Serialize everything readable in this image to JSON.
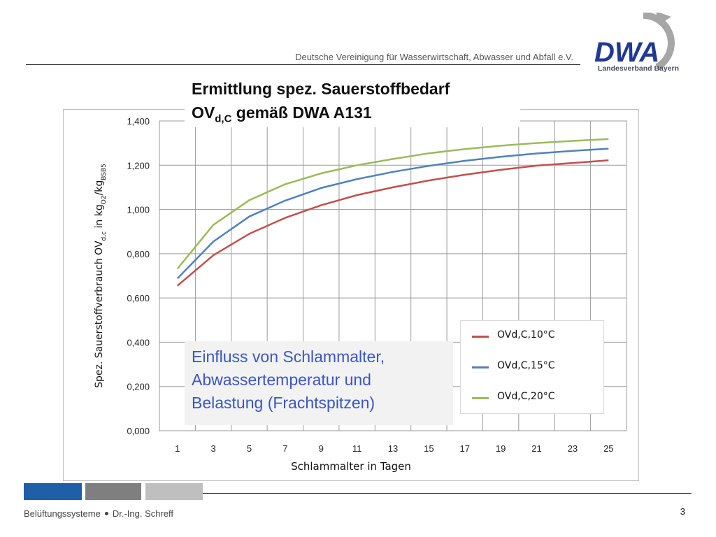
{
  "header": {
    "org": "Deutsche Vereinigung für Wasserwirtschaft, Abwasser und Abfall e.V.",
    "logo_text": "DWA",
    "logo_sub": "Landesverband Bayern",
    "colors": {
      "navy": "#1f3a93",
      "grey": "#a6a6a6"
    }
  },
  "title": {
    "line1": "Ermittlung spez. Sauerstoffbedarf",
    "line2_prefix": "OV",
    "line2_sub": "d,C",
    "line2_suffix": " gemäß DWA A131"
  },
  "note": {
    "line1": "Einfluss von Schlammalter,",
    "line2": "Abwassertemperatur und",
    "line3": "Belastung (Frachtspitzen)"
  },
  "chart_data": {
    "type": "line",
    "x": [
      1,
      3,
      5,
      7,
      9,
      11,
      13,
      15,
      17,
      19,
      21,
      23,
      25
    ],
    "xlabel": "Schlammalter in Tagen",
    "ylabel": "Spez. Sauerstoffverbrauch OV",
    "ylabel_sub1": "d,c",
    "ylabel_mid": " in kg",
    "ylabel_sub2": "O2",
    "ylabel_mid2": "/kg",
    "ylabel_sub3": "BSB5",
    "ylim": [
      0,
      1.4
    ],
    "yticks": [
      0,
      0.2,
      0.4,
      0.6,
      0.8,
      1.0,
      1.2,
      1.4
    ],
    "ytick_labels": [
      "0,000",
      "0,200",
      "0,400",
      "0,600",
      "0,800",
      "1,000",
      "1,200",
      "1,400"
    ],
    "xtick_labels": [
      "1",
      "3",
      "5",
      "7",
      "9",
      "11",
      "13",
      "15",
      "17",
      "19",
      "21",
      "23",
      "25"
    ],
    "grid": true,
    "legend_position": "bottom-right",
    "series": [
      {
        "name": "OVd,C,10°C",
        "color": "#c0504d",
        "values": [
          0.655,
          0.793,
          0.89,
          0.962,
          1.019,
          1.065,
          1.1,
          1.131,
          1.157,
          1.179,
          1.198,
          1.21,
          1.222
        ]
      },
      {
        "name": "OVd,C,15°C",
        "color": "#4f81bd",
        "values": [
          0.688,
          0.855,
          0.968,
          1.04,
          1.097,
          1.137,
          1.17,
          1.197,
          1.22,
          1.238,
          1.253,
          1.265,
          1.275
        ]
      },
      {
        "name": "OVd,C,20°C",
        "color": "#9bbb59",
        "values": [
          0.732,
          0.93,
          1.042,
          1.114,
          1.163,
          1.2,
          1.228,
          1.254,
          1.273,
          1.288,
          1.3,
          1.31,
          1.318
        ]
      }
    ]
  },
  "footer": {
    "left_part1": "Belüftungssysteme",
    "left_part2": "Dr.-Ing. Schreff",
    "page_number": "3",
    "block_colors": [
      "#1f5fa8",
      "#7f7f7f",
      "#bfbfbf"
    ]
  }
}
